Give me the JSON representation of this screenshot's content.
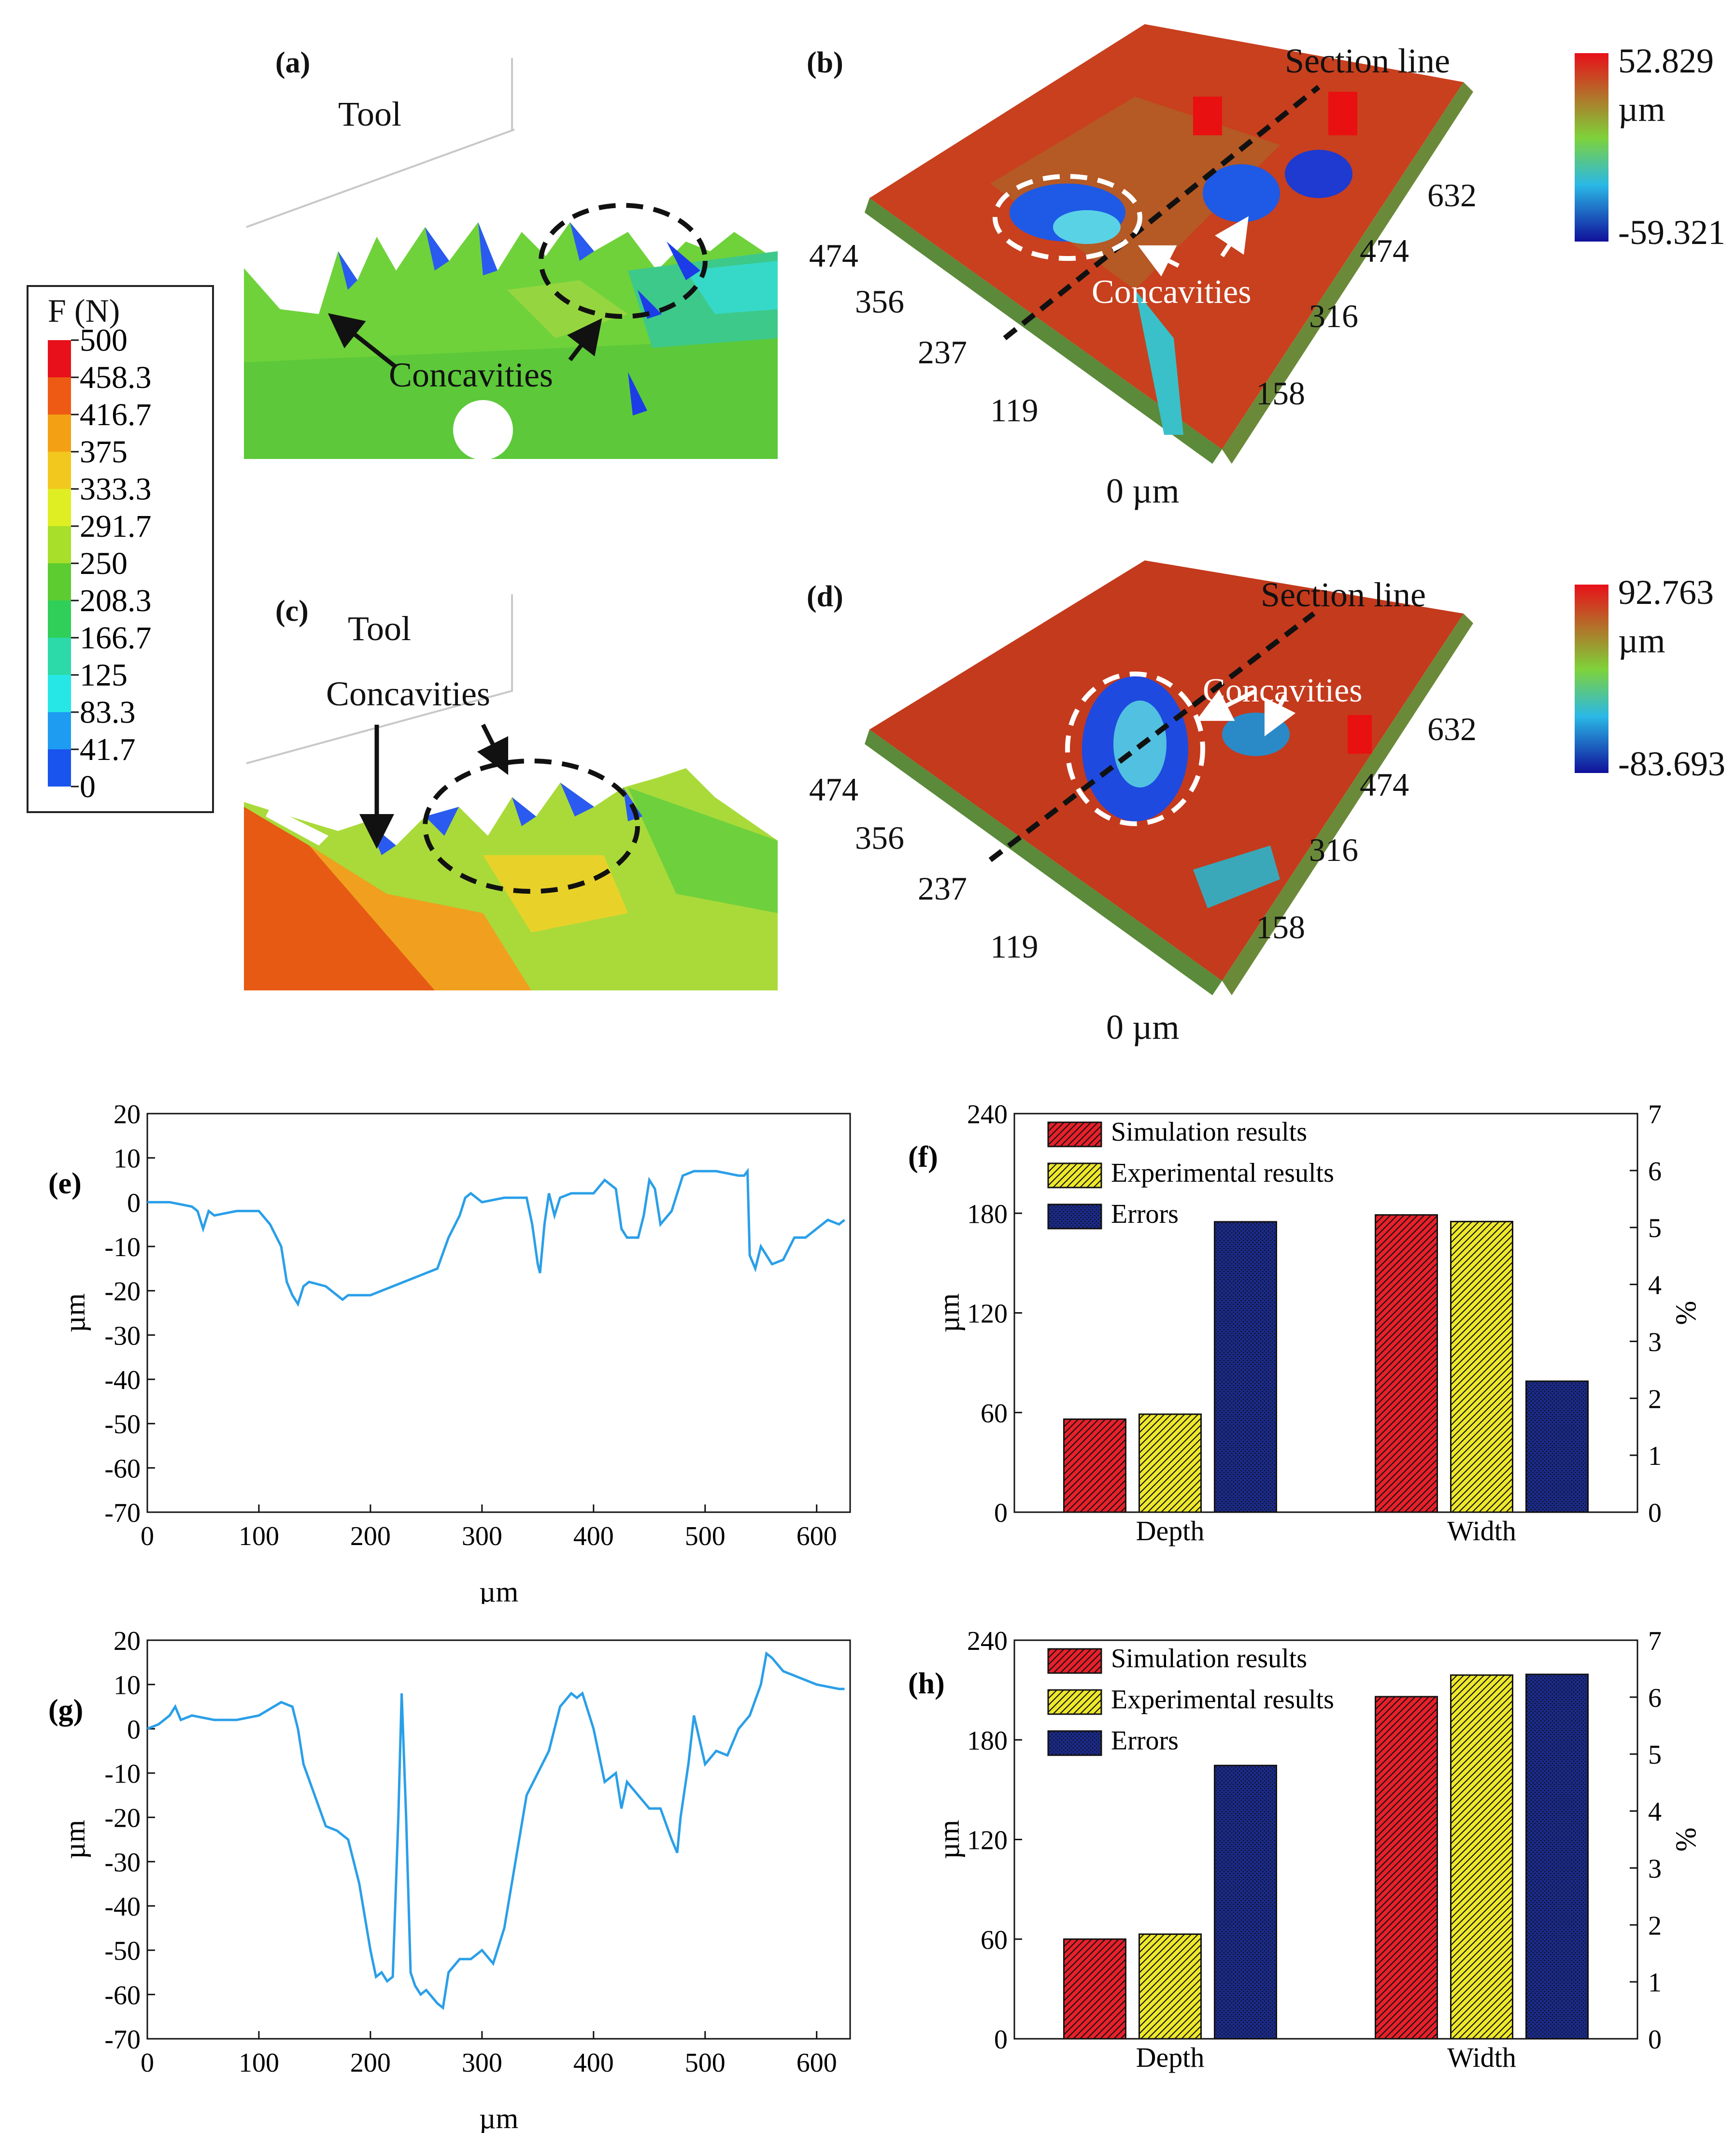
{
  "force_legend": {
    "title": "F (N)",
    "levels": [
      "500",
      "458.3",
      "416.7",
      "375",
      "333.3",
      "291.7",
      "250",
      "208.3",
      "166.7",
      "125",
      "83.3",
      "41.7",
      "0"
    ],
    "colors": [
      "#e8101a",
      "#ee5a14",
      "#f4a014",
      "#f2c81e",
      "#dfee22",
      "#a8df2a",
      "#5ccc30",
      "#2fcf5a",
      "#2cd9a8",
      "#27e6e6",
      "#1e9cf2",
      "#1a54ee",
      "#1010e8"
    ]
  },
  "panel_a": {
    "label": "(a)",
    "tool": "Tool",
    "concavities": "Concavities"
  },
  "panel_c": {
    "label": "(c)",
    "tool": "Tool",
    "concavities": "Concavities"
  },
  "panel_b": {
    "label": "(b)",
    "section_line": "Section line",
    "concavities": "Concavities",
    "scale_max": "52.829",
    "scale_unit": "µm",
    "scale_min": "-59.321",
    "left_ticks": [
      "474",
      "356",
      "237",
      "119",
      "0 µm"
    ],
    "right_ticks": [
      "632",
      "474",
      "316",
      "158"
    ]
  },
  "panel_d": {
    "label": "(d)",
    "section_line": "Section line",
    "concavities": "Concavities",
    "scale_max": "92.763",
    "scale_unit": "µm",
    "scale_min": "-83.693",
    "left_ticks": [
      "474",
      "356",
      "237",
      "119",
      "0 µm"
    ],
    "right_ticks": [
      "632",
      "474",
      "316",
      "158"
    ]
  },
  "chart_data": [
    {
      "id": "e",
      "type": "line",
      "label": "(e)",
      "xlabel": "µm",
      "ylabel": "µm",
      "xlim": [
        0,
        630
      ],
      "ylim": [
        -70,
        20
      ],
      "xticks": [
        0,
        100,
        200,
        300,
        400,
        500,
        600
      ],
      "yticks": [
        20,
        10,
        0,
        -10,
        -20,
        -30,
        -40,
        -50,
        -60,
        -70
      ],
      "color": "#2a9fe8",
      "series": [
        {
          "name": "profile",
          "x": [
            0,
            20,
            40,
            45,
            50,
            55,
            60,
            80,
            100,
            110,
            120,
            125,
            130,
            135,
            140,
            145,
            160,
            175,
            180,
            200,
            220,
            240,
            260,
            270,
            280,
            285,
            290,
            300,
            320,
            340,
            345,
            350,
            352,
            356,
            360,
            365,
            370,
            380,
            400,
            410,
            420,
            425,
            430,
            440,
            445,
            450,
            455,
            460,
            470,
            480,
            490,
            510,
            530,
            535,
            538,
            540,
            545,
            550,
            560,
            570,
            580,
            590,
            600,
            610,
            620,
            625
          ],
          "y": [
            0,
            0,
            -1,
            -2,
            -6,
            -2,
            -3,
            -2,
            -2,
            -5,
            -10,
            -18,
            -21,
            -23,
            -19,
            -18,
            -19,
            -22,
            -21,
            -21,
            -19,
            -17,
            -15,
            -8,
            -3,
            1,
            2,
            0,
            1,
            1,
            -5,
            -14,
            -16,
            -5,
            2,
            -3,
            1,
            2,
            2,
            5,
            3,
            -6,
            -8,
            -8,
            -3,
            5,
            3,
            -5,
            -2,
            6,
            7,
            7,
            6,
            6,
            7,
            -12,
            -15,
            -10,
            -14,
            -13,
            -8,
            -8,
            -6,
            -4,
            -5,
            -4
          ]
        }
      ]
    },
    {
      "id": "g",
      "type": "line",
      "label": "(g)",
      "xlabel": "µm",
      "ylabel": "µm",
      "xlim": [
        0,
        630
      ],
      "ylim": [
        -70,
        20
      ],
      "xticks": [
        0,
        100,
        200,
        300,
        400,
        500,
        600
      ],
      "yticks": [
        20,
        10,
        0,
        -10,
        -20,
        -30,
        -40,
        -50,
        -60,
        -70
      ],
      "color": "#2a9fe8",
      "series": [
        {
          "name": "profile",
          "x": [
            0,
            10,
            20,
            25,
            30,
            40,
            60,
            80,
            100,
            120,
            130,
            135,
            140,
            150,
            160,
            170,
            180,
            190,
            200,
            205,
            210,
            215,
            220,
            225,
            228,
            232,
            236,
            240,
            245,
            250,
            260,
            265,
            270,
            280,
            290,
            300,
            310,
            320,
            330,
            340,
            350,
            360,
            370,
            380,
            385,
            390,
            400,
            410,
            420,
            425,
            430,
            440,
            450,
            460,
            470,
            475,
            478,
            485,
            490,
            500,
            510,
            520,
            530,
            540,
            550,
            555,
            560,
            570,
            580,
            600,
            620,
            625
          ],
          "y": [
            0,
            1,
            3,
            5,
            2,
            3,
            2,
            2,
            3,
            6,
            5,
            0,
            -8,
            -15,
            -22,
            -23,
            -25,
            -35,
            -50,
            -56,
            -55,
            -57,
            -56,
            -20,
            8,
            -20,
            -55,
            -58,
            -60,
            -59,
            -62,
            -63,
            -55,
            -52,
            -52,
            -50,
            -53,
            -45,
            -30,
            -15,
            -10,
            -5,
            5,
            8,
            7,
            8,
            0,
            -12,
            -10,
            -18,
            -12,
            -15,
            -18,
            -18,
            -25,
            -28,
            -20,
            -8,
            3,
            -8,
            -5,
            -6,
            0,
            3,
            10,
            17,
            16,
            13,
            12,
            10,
            9,
            9
          ]
        }
      ]
    },
    {
      "id": "f",
      "type": "bar",
      "label": "(f)",
      "categories": [
        "Depth",
        "Width"
      ],
      "ylabel": "µm",
      "y2label": "%",
      "ylim": [
        0,
        240
      ],
      "yticks": [
        0,
        60,
        120,
        180,
        240
      ],
      "y2lim": [
        0,
        7
      ],
      "y2ticks": [
        0,
        1,
        2,
        3,
        4,
        5,
        6,
        7
      ],
      "series": [
        {
          "name": "Simulation results",
          "axis": "left",
          "values": [
            56,
            179
          ],
          "color": "#e8202a"
        },
        {
          "name": "Experimental results",
          "axis": "left",
          "values": [
            59,
            175
          ],
          "color": "#eee82a"
        },
        {
          "name": "Errors",
          "axis": "right",
          "values": [
            5.1,
            2.3
          ],
          "color": "#1a2a8c"
        }
      ]
    },
    {
      "id": "h",
      "type": "bar",
      "label": "(h)",
      "categories": [
        "Depth",
        "Width"
      ],
      "ylabel": "µm",
      "y2label": "%",
      "ylim": [
        0,
        240
      ],
      "yticks": [
        0,
        60,
        120,
        180,
        240
      ],
      "y2lim": [
        0,
        7
      ],
      "y2ticks": [
        0,
        1,
        2,
        3,
        4,
        5,
        6,
        7
      ],
      "series": [
        {
          "name": "Simulation results",
          "axis": "left",
          "values": [
            60,
            206
          ],
          "color": "#e8202a"
        },
        {
          "name": "Experimental results",
          "axis": "left",
          "values": [
            63,
            219
          ],
          "color": "#eee82a"
        },
        {
          "name": "Errors",
          "axis": "right",
          "values": [
            4.8,
            6.4
          ],
          "color": "#1a2a8c"
        }
      ]
    }
  ]
}
